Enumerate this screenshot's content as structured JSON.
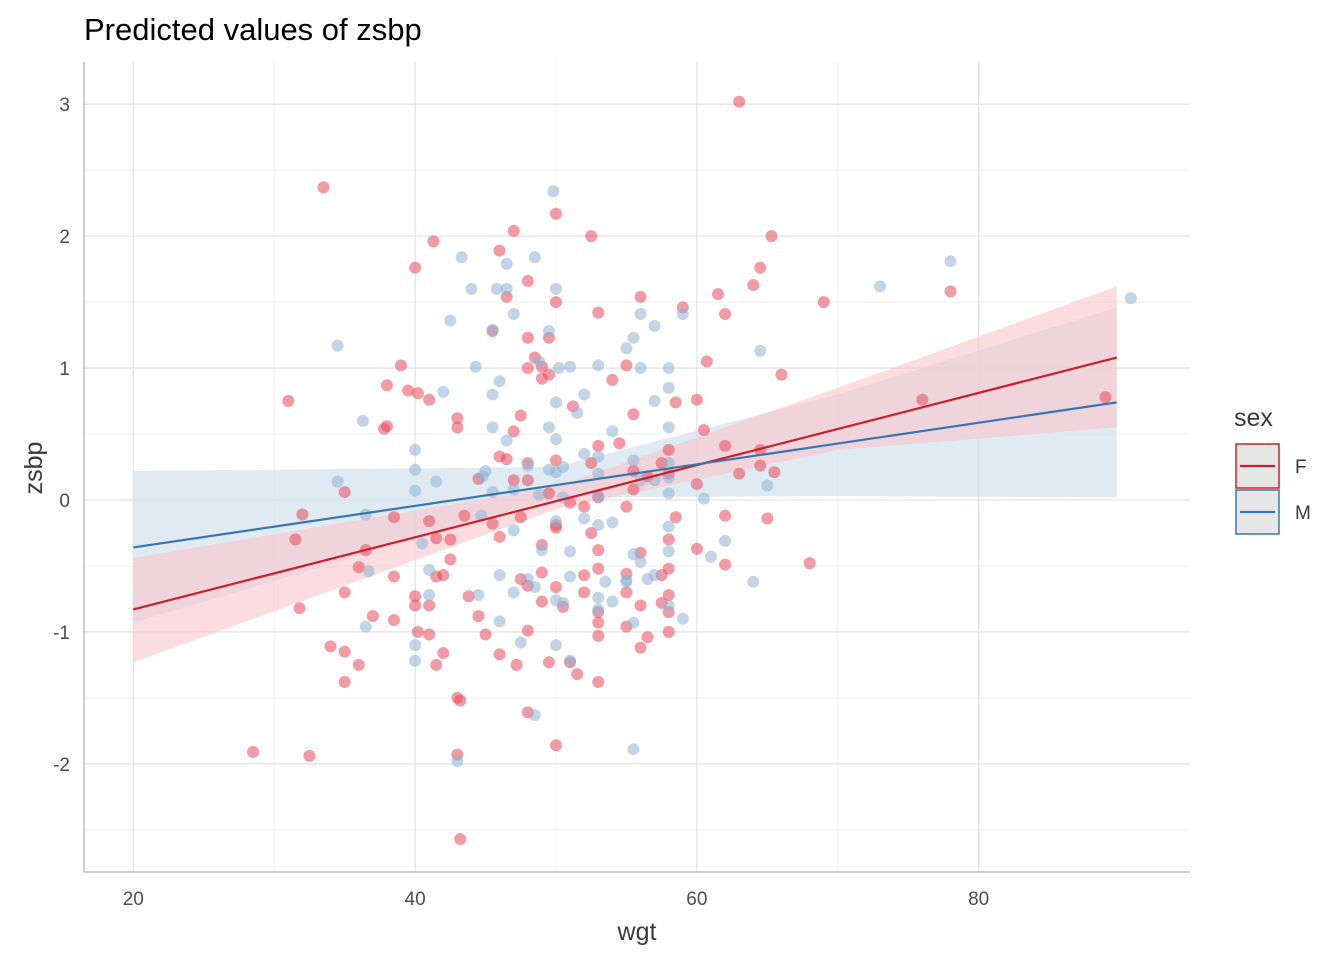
{
  "chart_data": {
    "type": "scatter",
    "title": "Predicted values of zsbp",
    "xlabel": "wgt",
    "ylabel": "zsbp",
    "xlim": [
      16.5,
      95.0
    ],
    "ylim": [
      -2.82,
      3.32
    ],
    "x_ticks": [
      20,
      40,
      60,
      80
    ],
    "y_ticks": [
      -2,
      -1,
      0,
      1,
      2,
      3
    ],
    "grid": true,
    "legend": {
      "title": "sex",
      "position": "right"
    },
    "series": [
      {
        "name": "F",
        "color": "#C8202C",
        "point_color": "#E8495A",
        "band_color": "#F8C7CB",
        "fit": {
          "x0": 20,
          "y0": -0.83,
          "x1": 89.8,
          "y1": 1.08
        },
        "ci_lower": [
          [
            20,
            -1.23
          ],
          [
            50,
            -0.07
          ],
          [
            70,
            0.38
          ],
          [
            89.8,
            0.55
          ]
        ],
        "ci_upper": [
          [
            20,
            -0.44
          ],
          [
            50,
            0.1
          ],
          [
            70,
            0.85
          ],
          [
            89.8,
            1.62
          ]
        ],
        "points": [
          [
            63,
            3.02
          ],
          [
            33.5,
            2.37
          ],
          [
            50,
            2.17
          ],
          [
            52.5,
            2.0
          ],
          [
            41.3,
            1.96
          ],
          [
            65.3,
            2.0
          ],
          [
            47,
            2.04
          ],
          [
            46,
            1.89
          ],
          [
            48,
            1.66
          ],
          [
            40,
            1.76
          ],
          [
            64.5,
            1.76
          ],
          [
            64,
            1.63
          ],
          [
            78,
            1.58
          ],
          [
            69,
            1.5
          ],
          [
            56,
            1.54
          ],
          [
            61.5,
            1.56
          ],
          [
            50,
            1.5
          ],
          [
            59,
            1.46
          ],
          [
            46.5,
            1.54
          ],
          [
            62,
            1.41
          ],
          [
            53,
            1.42
          ],
          [
            45.5,
            1.28
          ],
          [
            48,
            1.23
          ],
          [
            49.5,
            1.23
          ],
          [
            60.7,
            1.05
          ],
          [
            48.5,
            1.08
          ],
          [
            49,
            1.01
          ],
          [
            48,
            1.0
          ],
          [
            39,
            1.02
          ],
          [
            55,
            1.02
          ],
          [
            66,
            0.95
          ],
          [
            49,
            0.92
          ],
          [
            49.5,
            0.95
          ],
          [
            54,
            0.91
          ],
          [
            38,
            0.87
          ],
          [
            39.5,
            0.83
          ],
          [
            40.2,
            0.81
          ],
          [
            31,
            0.75
          ],
          [
            41,
            0.76
          ],
          [
            58.5,
            0.74
          ],
          [
            60,
            0.76
          ],
          [
            55.5,
            0.65
          ],
          [
            51.2,
            0.71
          ],
          [
            47.5,
            0.64
          ],
          [
            76,
            0.76
          ],
          [
            43,
            0.62
          ],
          [
            38,
            0.56
          ],
          [
            37.8,
            0.54
          ],
          [
            43,
            0.55
          ],
          [
            60.5,
            0.53
          ],
          [
            47,
            0.52
          ],
          [
            62,
            0.41
          ],
          [
            64.5,
            0.38
          ],
          [
            53,
            0.41
          ],
          [
            54.5,
            0.43
          ],
          [
            58,
            0.38
          ],
          [
            89,
            0.78
          ],
          [
            46,
            0.33
          ],
          [
            46.5,
            0.31
          ],
          [
            48,
            0.28
          ],
          [
            50,
            0.3
          ],
          [
            57.5,
            0.28
          ],
          [
            52.5,
            0.28
          ],
          [
            55.5,
            0.22
          ],
          [
            56.5,
            0.18
          ],
          [
            58,
            0.2
          ],
          [
            64.5,
            0.26
          ],
          [
            65.5,
            0.21
          ],
          [
            60,
            0.12
          ],
          [
            48,
            0.15
          ],
          [
            47,
            0.15
          ],
          [
            49.5,
            0.05
          ],
          [
            51,
            -0.02
          ],
          [
            52,
            -0.05
          ],
          [
            53,
            0.02
          ],
          [
            55,
            -0.05
          ],
          [
            35,
            0.06
          ],
          [
            32,
            -0.11
          ],
          [
            38.5,
            -0.13
          ],
          [
            41,
            -0.16
          ],
          [
            43.5,
            -0.12
          ],
          [
            45.5,
            -0.18
          ],
          [
            47.5,
            -0.13
          ],
          [
            50,
            -0.19
          ],
          [
            50,
            -0.21
          ],
          [
            52.5,
            -0.25
          ],
          [
            58.5,
            -0.13
          ],
          [
            62,
            -0.12
          ],
          [
            65,
            -0.14
          ],
          [
            31.5,
            -0.3
          ],
          [
            41.5,
            -0.29
          ],
          [
            42.5,
            -0.3
          ],
          [
            46,
            -0.28
          ],
          [
            49,
            -0.34
          ],
          [
            53,
            -0.38
          ],
          [
            58,
            -0.3
          ],
          [
            36.5,
            -0.38
          ],
          [
            36,
            -0.51
          ],
          [
            42.5,
            -0.45
          ],
          [
            53,
            -0.52
          ],
          [
            56,
            -0.4
          ],
          [
            60,
            -0.37
          ],
          [
            68,
            -0.48
          ],
          [
            62,
            -0.49
          ],
          [
            58,
            -0.52
          ],
          [
            57.5,
            -0.57
          ],
          [
            55,
            -0.56
          ],
          [
            52,
            -0.57
          ],
          [
            49,
            -0.55
          ],
          [
            47.5,
            -0.6
          ],
          [
            41.5,
            -0.58
          ],
          [
            42,
            -0.57
          ],
          [
            38.5,
            -0.58
          ],
          [
            35,
            -0.7
          ],
          [
            40,
            -0.73
          ],
          [
            40,
            -0.8
          ],
          [
            41,
            -0.8
          ],
          [
            43.8,
            -0.73
          ],
          [
            48,
            -0.65
          ],
          [
            50,
            -0.66
          ],
          [
            49,
            -0.77
          ],
          [
            52,
            -0.7
          ],
          [
            55,
            -0.7
          ],
          [
            57.5,
            -0.78
          ],
          [
            58,
            -0.72
          ],
          [
            37,
            -0.88
          ],
          [
            38.5,
            -0.91
          ],
          [
            44.5,
            -0.88
          ],
          [
            50.5,
            -0.81
          ],
          [
            53,
            -0.85
          ],
          [
            56,
            -0.8
          ],
          [
            58,
            -0.85
          ],
          [
            31.8,
            -0.82
          ],
          [
            53,
            -0.93
          ],
          [
            55,
            -0.96
          ],
          [
            40.2,
            -1.0
          ],
          [
            41,
            -1.02
          ],
          [
            45,
            -1.02
          ],
          [
            48,
            -0.99
          ],
          [
            53,
            -1.03
          ],
          [
            56.5,
            -1.04
          ],
          [
            58,
            -1.0
          ],
          [
            34,
            -1.11
          ],
          [
            35,
            -1.15
          ],
          [
            42,
            -1.16
          ],
          [
            46,
            -1.17
          ],
          [
            47.2,
            -1.25
          ],
          [
            49.5,
            -1.23
          ],
          [
            51,
            -1.23
          ],
          [
            56,
            -1.12
          ],
          [
            36,
            -1.25
          ],
          [
            41.5,
            -1.25
          ],
          [
            51.5,
            -1.32
          ],
          [
            53,
            -1.38
          ],
          [
            35,
            -1.38
          ],
          [
            43,
            -1.5
          ],
          [
            43.2,
            -1.52
          ],
          [
            48,
            -1.61
          ],
          [
            50,
            -1.86
          ],
          [
            28.5,
            -1.91
          ],
          [
            32.5,
            -1.94
          ],
          [
            43,
            -1.93
          ],
          [
            43.2,
            -2.57
          ],
          [
            63,
            0.2
          ],
          [
            44.5,
            0.16
          ],
          [
            55.5,
            0.08
          ]
        ]
      },
      {
        "name": "M",
        "color": "#3A75AE",
        "point_color": "#8FB2D4",
        "band_color": "#D6E3EF",
        "fit": {
          "x0": 20,
          "y0": -0.36,
          "x1": 89.8,
          "y1": 0.74
        },
        "ci_lower": [
          [
            20,
            -0.93
          ],
          [
            50,
            0.02
          ],
          [
            70,
            0.03
          ],
          [
            89.8,
            0.02
          ]
        ],
        "ci_upper": [
          [
            20,
            0.22
          ],
          [
            50,
            0.25
          ],
          [
            70,
            0.8
          ],
          [
            89.8,
            1.46
          ]
        ],
        "points": [
          [
            49.8,
            2.34
          ],
          [
            48.5,
            1.84
          ],
          [
            43.3,
            1.84
          ],
          [
            46.5,
            1.79
          ],
          [
            78,
            1.81
          ],
          [
            44,
            1.6
          ],
          [
            45.8,
            1.6
          ],
          [
            46.5,
            1.6
          ],
          [
            50,
            1.6
          ],
          [
            73,
            1.62
          ],
          [
            90.8,
            1.53
          ],
          [
            47,
            1.41
          ],
          [
            56,
            1.41
          ],
          [
            59,
            1.41
          ],
          [
            57,
            1.32
          ],
          [
            42.5,
            1.36
          ],
          [
            45.5,
            1.29
          ],
          [
            55.5,
            1.23
          ],
          [
            49.5,
            1.28
          ],
          [
            34.5,
            1.17
          ],
          [
            55,
            1.15
          ],
          [
            64.5,
            1.13
          ],
          [
            48.8,
            1.05
          ],
          [
            51,
            1.01
          ],
          [
            44.3,
            1.01
          ],
          [
            50.2,
            1.0
          ],
          [
            58,
            1.0
          ],
          [
            53,
            1.02
          ],
          [
            56,
            1.0
          ],
          [
            46,
            0.9
          ],
          [
            52,
            0.8
          ],
          [
            45.5,
            0.8
          ],
          [
            42,
            0.82
          ],
          [
            58,
            0.85
          ],
          [
            50,
            0.74
          ],
          [
            57,
            0.75
          ],
          [
            51.5,
            0.66
          ],
          [
            36.3,
            0.6
          ],
          [
            45.5,
            0.55
          ],
          [
            49.5,
            0.55
          ],
          [
            54,
            0.52
          ],
          [
            58,
            0.55
          ],
          [
            46.5,
            0.45
          ],
          [
            50,
            0.46
          ],
          [
            40,
            0.38
          ],
          [
            52,
            0.35
          ],
          [
            53,
            0.33
          ],
          [
            55.5,
            0.3
          ],
          [
            58,
            0.28
          ],
          [
            48,
            0.26
          ],
          [
            49.5,
            0.23
          ],
          [
            50,
            0.21
          ],
          [
            50.5,
            0.25
          ],
          [
            53,
            0.2
          ],
          [
            45,
            0.22
          ],
          [
            40,
            0.23
          ],
          [
            41.5,
            0.14
          ],
          [
            34.5,
            0.14
          ],
          [
            44.8,
            0.18
          ],
          [
            56,
            0.15
          ],
          [
            57,
            0.15
          ],
          [
            58,
            0.17
          ],
          [
            65,
            0.11
          ],
          [
            40,
            0.07
          ],
          [
            45.5,
            0.06
          ],
          [
            47,
            0.08
          ],
          [
            48.8,
            0.04
          ],
          [
            50.5,
            0.02
          ],
          [
            53,
            0.03
          ],
          [
            58,
            0.05
          ],
          [
            60.5,
            0.01
          ],
          [
            36.5,
            -0.11
          ],
          [
            44.7,
            -0.12
          ],
          [
            47,
            -0.23
          ],
          [
            50,
            -0.16
          ],
          [
            52,
            -0.14
          ],
          [
            53,
            -0.19
          ],
          [
            54,
            -0.17
          ],
          [
            58,
            -0.2
          ],
          [
            62,
            -0.31
          ],
          [
            40.5,
            -0.33
          ],
          [
            49,
            -0.38
          ],
          [
            51,
            -0.39
          ],
          [
            55.5,
            -0.41
          ],
          [
            56,
            -0.47
          ],
          [
            58,
            -0.39
          ],
          [
            61,
            -0.43
          ],
          [
            36.7,
            -0.54
          ],
          [
            41,
            -0.53
          ],
          [
            46,
            -0.57
          ],
          [
            48,
            -0.6
          ],
          [
            51,
            -0.58
          ],
          [
            53.5,
            -0.62
          ],
          [
            55,
            -0.61
          ],
          [
            56.5,
            -0.6
          ],
          [
            57,
            -0.57
          ],
          [
            64,
            -0.62
          ],
          [
            41,
            -0.72
          ],
          [
            44.5,
            -0.72
          ],
          [
            47,
            -0.7
          ],
          [
            48.5,
            -0.66
          ],
          [
            50,
            -0.76
          ],
          [
            50.5,
            -0.78
          ],
          [
            53,
            -0.74
          ],
          [
            54,
            -0.77
          ],
          [
            55,
            -0.62
          ],
          [
            58,
            -0.8
          ],
          [
            36.5,
            -0.96
          ],
          [
            46,
            -0.92
          ],
          [
            53,
            -0.83
          ],
          [
            55.5,
            -0.93
          ],
          [
            59,
            -0.9
          ],
          [
            40,
            -1.1
          ],
          [
            47.5,
            -1.08
          ],
          [
            50,
            -1.1
          ],
          [
            40,
            -1.22
          ],
          [
            51,
            -1.22
          ],
          [
            48.5,
            -1.63
          ],
          [
            55.5,
            -1.89
          ],
          [
            43,
            -1.98
          ]
        ]
      }
    ]
  }
}
